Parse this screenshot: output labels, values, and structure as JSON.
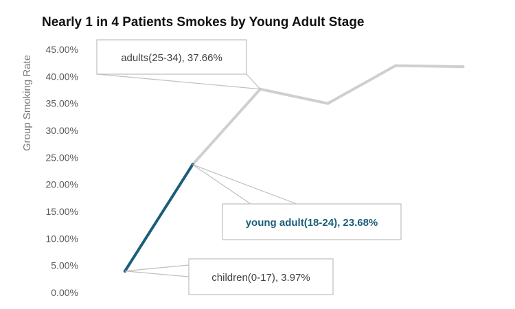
{
  "chart_data": {
    "type": "line",
    "title": "Nearly 1 in 4 Patients Smokes by Young Adult Stage",
    "ylabel": "Group Smoking Rate",
    "xlabel": "",
    "ylim": [
      0,
      45
    ],
    "y_ticks": [
      "0.00%",
      "5.00%",
      "10.00%",
      "15.00%",
      "20.00%",
      "25.00%",
      "30.00%",
      "35.00%",
      "40.00%",
      "45.00%"
    ],
    "grid": false,
    "categories": [
      "children(0-17)",
      "young adult(18-24)",
      "adults(25-34)",
      "",
      "",
      ""
    ],
    "values": [
      3.97,
      23.68,
      37.66,
      35.0,
      42.0,
      41.8
    ],
    "highlight_segment": [
      0,
      1
    ],
    "colors": {
      "highlight": "#1b5e7a",
      "rest": "#cfcfcf"
    },
    "annotations": [
      {
        "point": 2,
        "text": "adults(25-34), 37.66%",
        "style": "normal"
      },
      {
        "point": 1,
        "text": "young adult(18-24), 23.68%",
        "style": "highlight"
      },
      {
        "point": 0,
        "text": "children(0-17), 3.97%",
        "style": "normal"
      }
    ]
  }
}
